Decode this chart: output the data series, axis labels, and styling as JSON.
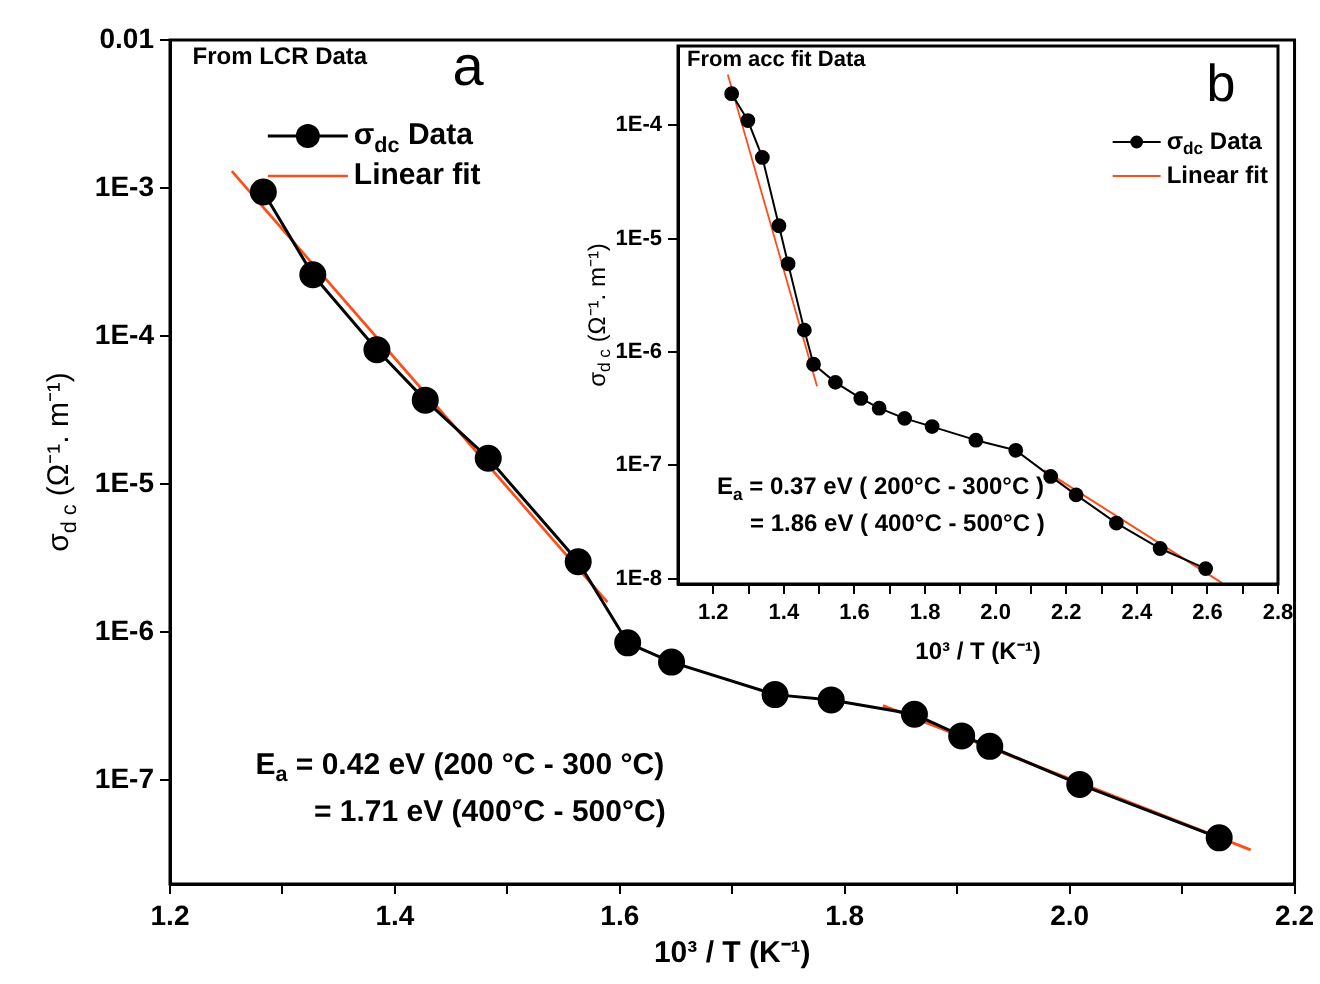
{
  "chart_data": [
    {
      "type": "line",
      "xlabel": "10³ / T (K⁻¹)",
      "ylabel": "σ$_{d c}$ (Ω⁻¹. m⁻¹)",
      "log": true,
      "marker": "circle",
      "legend": "top left",
      "xlim": [
        1.2,
        2.2
      ],
      "xticks": [
        1.2,
        {
          "value": 1.3,
          "label": null
        },
        1.4,
        {
          "value": 1.5,
          "label": null
        },
        1.6,
        {
          "value": 1.7,
          "label": null
        },
        1.8,
        {
          "value": 1.9,
          "label": null
        },
        {
          "value": 2.0,
          "label": "2.0"
        },
        {
          "value": 2.1,
          "label": null
        },
        2.2
      ],
      "ylim": [
        2e-08,
        0.01
      ],
      "yticks": [
        {
          "value": 1e-07,
          "label": "1E-7"
        },
        {
          "value": 1e-06,
          "label": "1E-6"
        },
        {
          "value": 1e-05,
          "label": "1E-5"
        },
        {
          "value": 0.0001,
          "label": "1E-4"
        },
        {
          "value": 0.001,
          "label": "1E-3"
        },
        0.01
      ],
      "annotations": [
        "From LCR Data",
        "a",
        "E$_{a}$ = 0.42 eV (200 °C - 300 °C)",
        "= 1.71 eV (400°C - 500°C)"
      ],
      "series": [
        {
          "name": "σ$_{dc}$ Data",
          "color": "#000000",
          "x": [
            1.283,
            1.327,
            1.384,
            1.427,
            1.483,
            1.563,
            1.607,
            1.646,
            1.738,
            1.788,
            1.862,
            1.904,
            1.929,
            2.009,
            2.133
          ],
          "values": [
            0.00094,
            0.00026,
            8.1e-05,
            3.7e-05,
            1.5e-05,
            3e-06,
            8.5e-07,
            6.3e-07,
            3.8e-07,
            3.5e-07,
            2.8e-07,
            2e-07,
            1.7e-07,
            9.4e-08,
            4.1e-08
          ]
        },
        {
          "name": "Linear fit",
          "color": "#ff4d1a",
          "marker": "none",
          "x": [
            1.255,
            1.589
          ],
          "values": [
            0.0013,
            1.6e-06
          ]
        },
        {
          "color": "#ff4d1a",
          "marker": "none",
          "x": [
            1.834,
            2.161
          ],
          "values": [
            3.2e-07,
            3.4e-08
          ]
        }
      ]
    },
    {
      "type": "line",
      "xlabel": "10³ / T (K⁻¹)",
      "ylabel": "σ$_{d c}$ (Ω⁻¹. m⁻¹)",
      "log": true,
      "marker": "circle",
      "legend": "top right",
      "xlim": [
        1.1,
        2.8
      ],
      "xticks": [
        1.2,
        {
          "value": 1.3,
          "label": null
        },
        1.4,
        {
          "value": 1.5,
          "label": null
        },
        1.6,
        {
          "value": 1.7,
          "label": null
        },
        1.8,
        {
          "value": 1.9,
          "label": null
        },
        {
          "value": 2.0,
          "label": "2.0"
        },
        {
          "value": 2.1,
          "label": null
        },
        2.2,
        {
          "value": 2.3,
          "label": null
        },
        2.4,
        {
          "value": 2.5,
          "label": null
        },
        2.6,
        {
          "value": 2.7,
          "label": null
        },
        2.8
      ],
      "ylim": [
        9e-09,
        0.0005
      ],
      "yticks": [
        {
          "value": 1e-08,
          "label": "1E-8"
        },
        {
          "value": 1e-07,
          "label": "1E-7"
        },
        {
          "value": 1e-06,
          "label": "1E-6"
        },
        {
          "value": 1e-05,
          "label": "1E-5"
        },
        {
          "value": 0.0001,
          "label": "1E-4"
        }
      ],
      "annotations": [
        "From acc fit Data",
        "b",
        "E$_{a}$ = 0.37 eV ( 200°C - 300°C )",
        "= 1.86 eV ( 400°C - 500°C )"
      ],
      "series": [
        {
          "name": "σ$_{dc}$ Data",
          "color": "#000000",
          "x": [
            1.252,
            1.298,
            1.339,
            1.386,
            1.412,
            1.458,
            1.484,
            1.546,
            1.618,
            1.67,
            1.742,
            1.82,
            1.944,
            2.057,
            2.156,
            2.228,
            2.342,
            2.466,
            2.595
          ],
          "values": [
            0.00019,
            0.00011,
            5.2e-05,
            1.3e-05,
            6e-06,
            1.56e-06,
            7.8e-07,
            5.4e-07,
            3.9e-07,
            3.2e-07,
            2.6e-07,
            2.2e-07,
            1.67e-07,
            1.36e-07,
            8e-08,
            5.5e-08,
            3.1e-08,
            1.85e-08,
            1.23e-08
          ]
        },
        {
          "name": "Linear fit",
          "color": "#ff4d1a",
          "marker": "none",
          "x": [
            1.241,
            1.494
          ],
          "values": [
            0.00028,
            5e-07
          ]
        },
        {
          "color": "#ff4d1a",
          "marker": "none",
          "x": [
            2.137,
            2.641
          ],
          "values": [
            9.1e-08,
            9.2e-09
          ]
        }
      ]
    }
  ]
}
